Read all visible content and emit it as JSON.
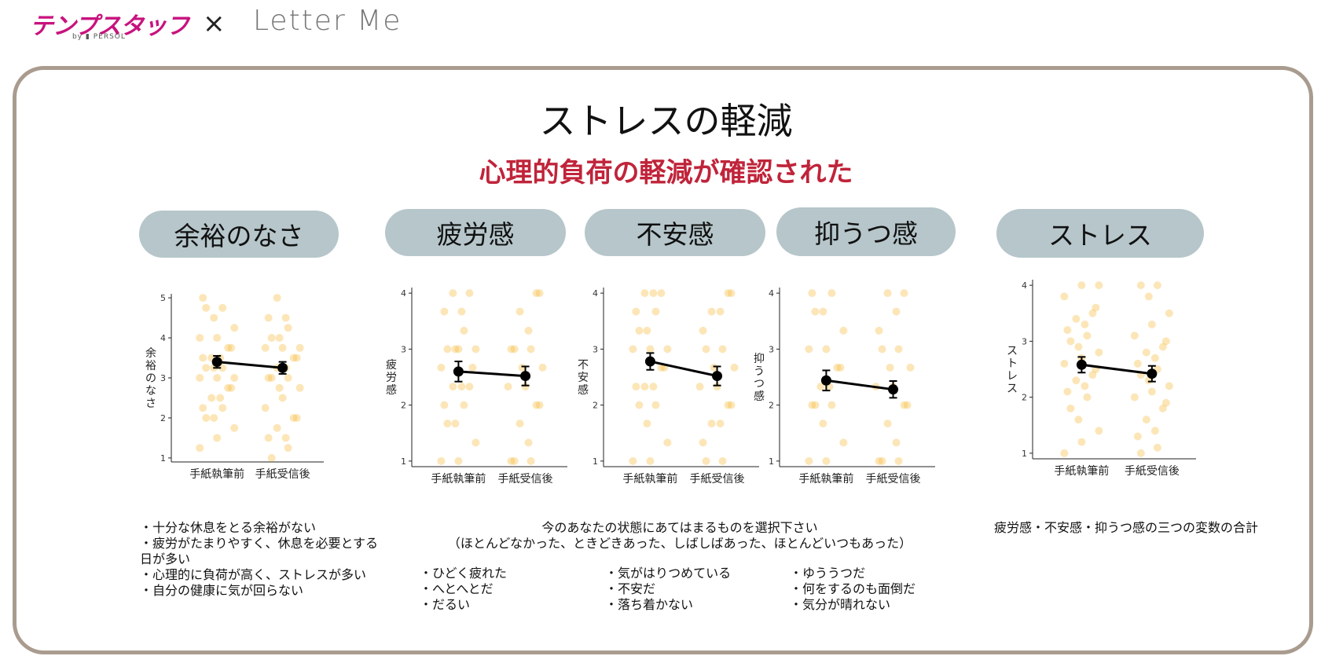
{
  "header": {
    "logo_main": "テンプスタッフ",
    "logo_sub": "by ▮ PERSOL",
    "separator": "×",
    "partner": "Letter Me"
  },
  "title": "ストレスの軽減",
  "subtitle": "心理的負荷の軽減が確認された",
  "pills": [
    "余裕のなさ",
    "疲労感",
    "不安感",
    "抑うつ感",
    "ストレス"
  ],
  "colors": {
    "accent": "#c0243a",
    "pill": "#b6c6cb",
    "dot": "#f7b733",
    "frame": "#a99c8f"
  },
  "chart_data": [
    {
      "type": "scatter",
      "ylabel": "余裕のなさ",
      "categories": [
        "手紙執筆前",
        "手紙受信後"
      ],
      "yticks": [
        1,
        2,
        3,
        4,
        5
      ],
      "ylim": [
        0.9,
        5.1
      ],
      "means": [
        3.4,
        3.25
      ],
      "errors": [
        0.15,
        0.15
      ],
      "jitter": [
        [
          1.25,
          1.5,
          1.75,
          2.0,
          2.0,
          2.25,
          2.25,
          2.5,
          2.5,
          2.75,
          2.75,
          3.0,
          3.0,
          3.0,
          3.25,
          3.25,
          3.25,
          3.5,
          3.5,
          3.5,
          3.75,
          3.75,
          4.0,
          4.0,
          4.25,
          4.5,
          4.75,
          4.75,
          5.0
        ],
        [
          1.0,
          1.25,
          1.5,
          1.5,
          1.75,
          2.0,
          2.0,
          2.25,
          2.5,
          2.75,
          2.75,
          3.0,
          3.0,
          3.0,
          3.25,
          3.25,
          3.5,
          3.5,
          3.75,
          3.75,
          3.75,
          4.0,
          4.0,
          4.25,
          4.5,
          4.5,
          5.0
        ]
      ]
    },
    {
      "type": "scatter",
      "ylabel": "疲労感",
      "categories": [
        "手紙執筆前",
        "手紙受信後"
      ],
      "yticks": [
        1,
        2,
        3,
        4
      ],
      "ylim": [
        0.9,
        4.1
      ],
      "means": [
        2.6,
        2.52
      ],
      "errors": [
        0.18,
        0.17
      ],
      "jitter": [
        [
          1.0,
          1.0,
          1.33,
          1.67,
          1.67,
          2.0,
          2.0,
          2.33,
          2.33,
          2.33,
          2.67,
          2.67,
          3.0,
          3.0,
          3.0,
          3.0,
          3.33,
          3.67,
          3.67,
          4.0,
          4.0
        ],
        [
          1.0,
          1.0,
          1.0,
          1.33,
          1.67,
          2.0,
          2.0,
          2.33,
          2.33,
          2.67,
          2.67,
          3.0,
          3.0,
          3.0,
          3.33,
          3.67,
          4.0,
          4.0
        ]
      ]
    },
    {
      "type": "scatter",
      "ylabel": "不安感",
      "categories": [
        "手紙執筆前",
        "手紙受信後"
      ],
      "yticks": [
        1,
        2,
        3,
        4
      ],
      "ylim": [
        0.9,
        4.1
      ],
      "means": [
        2.78,
        2.52
      ],
      "errors": [
        0.15,
        0.17
      ],
      "jitter": [
        [
          1.0,
          1.0,
          1.33,
          1.67,
          2.0,
          2.0,
          2.33,
          2.33,
          2.33,
          2.67,
          2.67,
          3.0,
          3.0,
          3.0,
          3.33,
          3.33,
          3.67,
          3.67,
          4.0,
          4.0,
          4.0
        ],
        [
          1.0,
          1.0,
          1.33,
          1.67,
          1.67,
          2.0,
          2.0,
          2.33,
          2.33,
          2.67,
          2.67,
          3.0,
          3.0,
          3.33,
          3.67,
          3.67,
          4.0,
          4.0
        ]
      ]
    },
    {
      "type": "scatter",
      "ylabel": "抑うつ感",
      "categories": [
        "手紙執筆前",
        "手紙受信後"
      ],
      "yticks": [
        1,
        2,
        3,
        4
      ],
      "ylim": [
        0.9,
        4.1
      ],
      "means": [
        2.44,
        2.28
      ],
      "errors": [
        0.18,
        0.15
      ],
      "jitter": [
        [
          1.0,
          1.0,
          1.33,
          1.67,
          2.0,
          2.0,
          2.0,
          2.33,
          2.33,
          2.67,
          2.67,
          3.0,
          3.0,
          3.33,
          3.67,
          3.67,
          4.0,
          4.0
        ],
        [
          1.0,
          1.0,
          1.0,
          1.33,
          1.67,
          2.0,
          2.0,
          2.33,
          2.33,
          2.67,
          2.67,
          3.0,
          3.0,
          3.33,
          3.67,
          4.0,
          4.0
        ]
      ]
    },
    {
      "type": "scatter",
      "ylabel": "ストレス",
      "categories": [
        "手紙執筆前",
        "手紙受信後"
      ],
      "yticks": [
        1,
        2,
        3,
        4
      ],
      "ylim": [
        0.9,
        4.1
      ],
      "means": [
        2.58,
        2.42
      ],
      "errors": [
        0.14,
        0.14
      ],
      "jitter": [
        [
          1.0,
          1.2,
          1.4,
          1.6,
          1.8,
          2.0,
          2.1,
          2.2,
          2.3,
          2.4,
          2.5,
          2.6,
          2.7,
          2.8,
          2.9,
          3.0,
          3.1,
          3.2,
          3.3,
          3.4,
          3.5,
          3.6,
          3.8,
          4.0,
          4.0
        ],
        [
          1.0,
          1.1,
          1.3,
          1.4,
          1.6,
          1.8,
          1.9,
          2.0,
          2.1,
          2.2,
          2.3,
          2.4,
          2.5,
          2.6,
          2.7,
          2.8,
          2.9,
          3.0,
          3.1,
          3.3,
          3.5,
          3.8,
          4.0,
          4.0
        ]
      ]
    }
  ],
  "notes": {
    "left": "・十分な休息をとる余裕がない\n・疲労がたまりやすく、休息を必要とする\n日が多い\n・心理的に負荷が高く、ストレスが多い\n・自分の健康に気が回らない",
    "center_header": "今のあなたの状態にあてはまるものを選択下さい\n（ほとんどなかった、ときどきあった、しばしばあった、ほとんどいつもあった）",
    "col1": "・ひどく疲れた\n・へとへとだ\n・だるい",
    "col2": "・気がはりつめている\n・不安だ\n・落ち着かない",
    "col3": "・ゆううつだ\n・何をするのも面倒だ\n・気分が晴れない",
    "right": "疲労感・不安感・抑うつ感の三つの変数の合計"
  }
}
